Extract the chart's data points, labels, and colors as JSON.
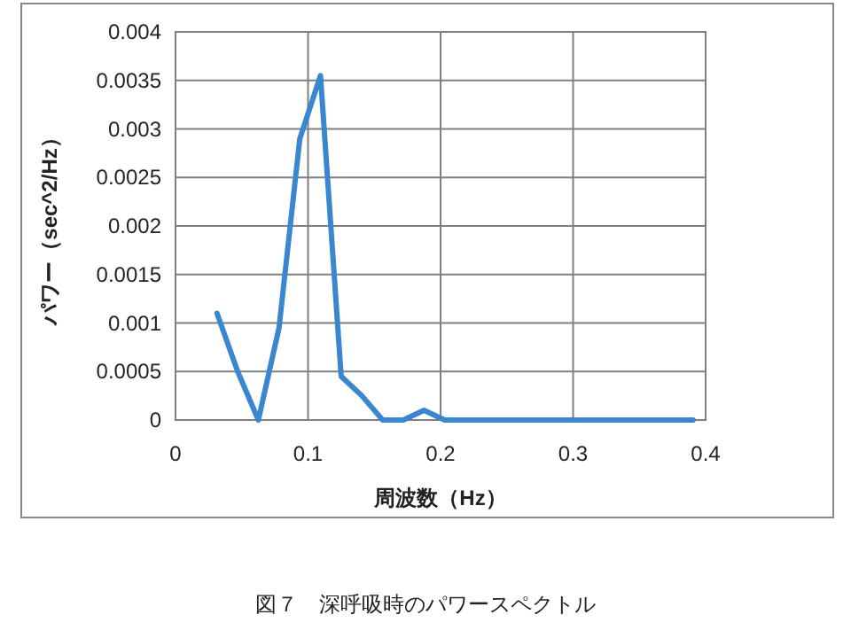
{
  "chart_data": {
    "type": "line",
    "xlabel": "周波数（Hz）",
    "ylabel": "パワー（sec^2/Hz）",
    "x": [
      0.0313,
      0.0469,
      0.0625,
      0.0781,
      0.0938,
      0.1094,
      0.125,
      0.1406,
      0.1563,
      0.1719,
      0.1875,
      0.2031,
      0.2188,
      0.2344,
      0.25,
      0.2656,
      0.2813,
      0.2969,
      0.3125,
      0.3281,
      0.3438,
      0.3594,
      0.375,
      0.3906
    ],
    "series": [
      {
        "color": "#3a87d0",
        "values": [
          0.0011,
          0.0005,
          0.0,
          0.00095,
          0.0029,
          0.00355,
          0.00045,
          0.00025,
          0.0,
          0.0,
          0.0001,
          0.0,
          0.0,
          0.0,
          0.0,
          0.0,
          0.0,
          0.0,
          0.0,
          0.0,
          0.0,
          0.0,
          0.0,
          0.0
        ]
      }
    ],
    "xlim": [
      0,
      0.4
    ],
    "xticks": [
      0,
      0.1,
      0.2,
      0.3,
      0.4
    ],
    "ylim": [
      0,
      0.004
    ],
    "yticks": [
      0,
      0.0005,
      0.001,
      0.0015,
      0.002,
      0.0025,
      0.003,
      0.0035,
      0.004
    ],
    "grid": true,
    "marker": "none",
    "line_style": "solid",
    "annotations": [
      "図７　深呼吸時のパワースペクトル"
    ]
  }
}
